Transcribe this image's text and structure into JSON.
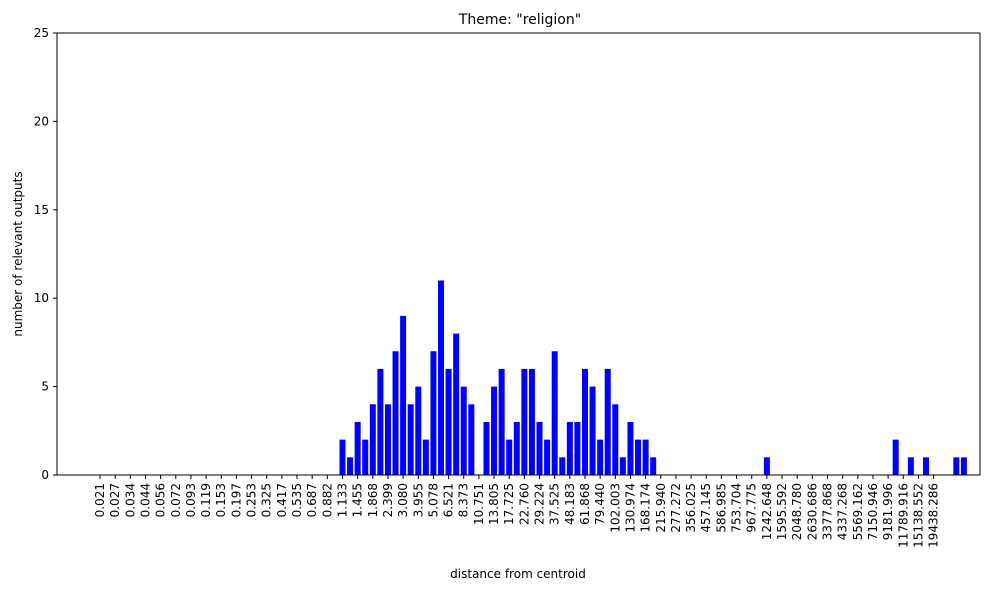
{
  "chart_data": {
    "type": "bar",
    "title": "Theme: \"religion\"",
    "xlabel": "distance from centroid",
    "ylabel": "number of relevant outputs",
    "ylim": [
      0,
      25
    ],
    "yticks": [
      0,
      5,
      10,
      15,
      20,
      25
    ],
    "bar_color": "#0000ff",
    "grid": false,
    "tick_labels": [
      "0.021",
      "0.027",
      "0.034",
      "0.044",
      "0.056",
      "0.072",
      "0.093",
      "0.119",
      "0.153",
      "0.197",
      "0.253",
      "0.325",
      "0.417",
      "0.535",
      "0.687",
      "0.882",
      "1.133",
      "1.455",
      "1.868",
      "2.399",
      "3.080",
      "3.955",
      "5.078",
      "6.521",
      "8.373",
      "10.751",
      "13.805",
      "17.725",
      "22.760",
      "29.224",
      "37.525",
      "48.183",
      "61.868",
      "79.440",
      "102.003",
      "130.974",
      "168.174",
      "215.940",
      "277.272",
      "356.025",
      "457.145",
      "586.985",
      "753.704",
      "967.775",
      "1242.648",
      "1595.592",
      "2048.780",
      "2630.686",
      "3377.868",
      "4337.268",
      "5569.162",
      "7150.946",
      "9181.996",
      "11789.916",
      "15138.552",
      "19438.286"
    ],
    "values": [
      0,
      0,
      0,
      0,
      0,
      0,
      0,
      0,
      0,
      0,
      0,
      0,
      0,
      0,
      0,
      0,
      0,
      0,
      0,
      0,
      0,
      0,
      0,
      0,
      0,
      0,
      0,
      0,
      0,
      0,
      0,
      0,
      2,
      1,
      3,
      2,
      4,
      6,
      4,
      7,
      9,
      4,
      5,
      2,
      7,
      11,
      6,
      8,
      5,
      4,
      0,
      3,
      5,
      6,
      2,
      3,
      6,
      6,
      3,
      2,
      7,
      1,
      3,
      3,
      6,
      5,
      2,
      6,
      4,
      1,
      3,
      2,
      2,
      1,
      0,
      0,
      0,
      0,
      0,
      0,
      0,
      0,
      0,
      0,
      0,
      0,
      0,
      0,
      1,
      0,
      0,
      0,
      0,
      0,
      0,
      0,
      0,
      0,
      0,
      0,
      0,
      0,
      0,
      0,
      0,
      2,
      0,
      1,
      0,
      1,
      0,
      0,
      0,
      1,
      1
    ]
  }
}
